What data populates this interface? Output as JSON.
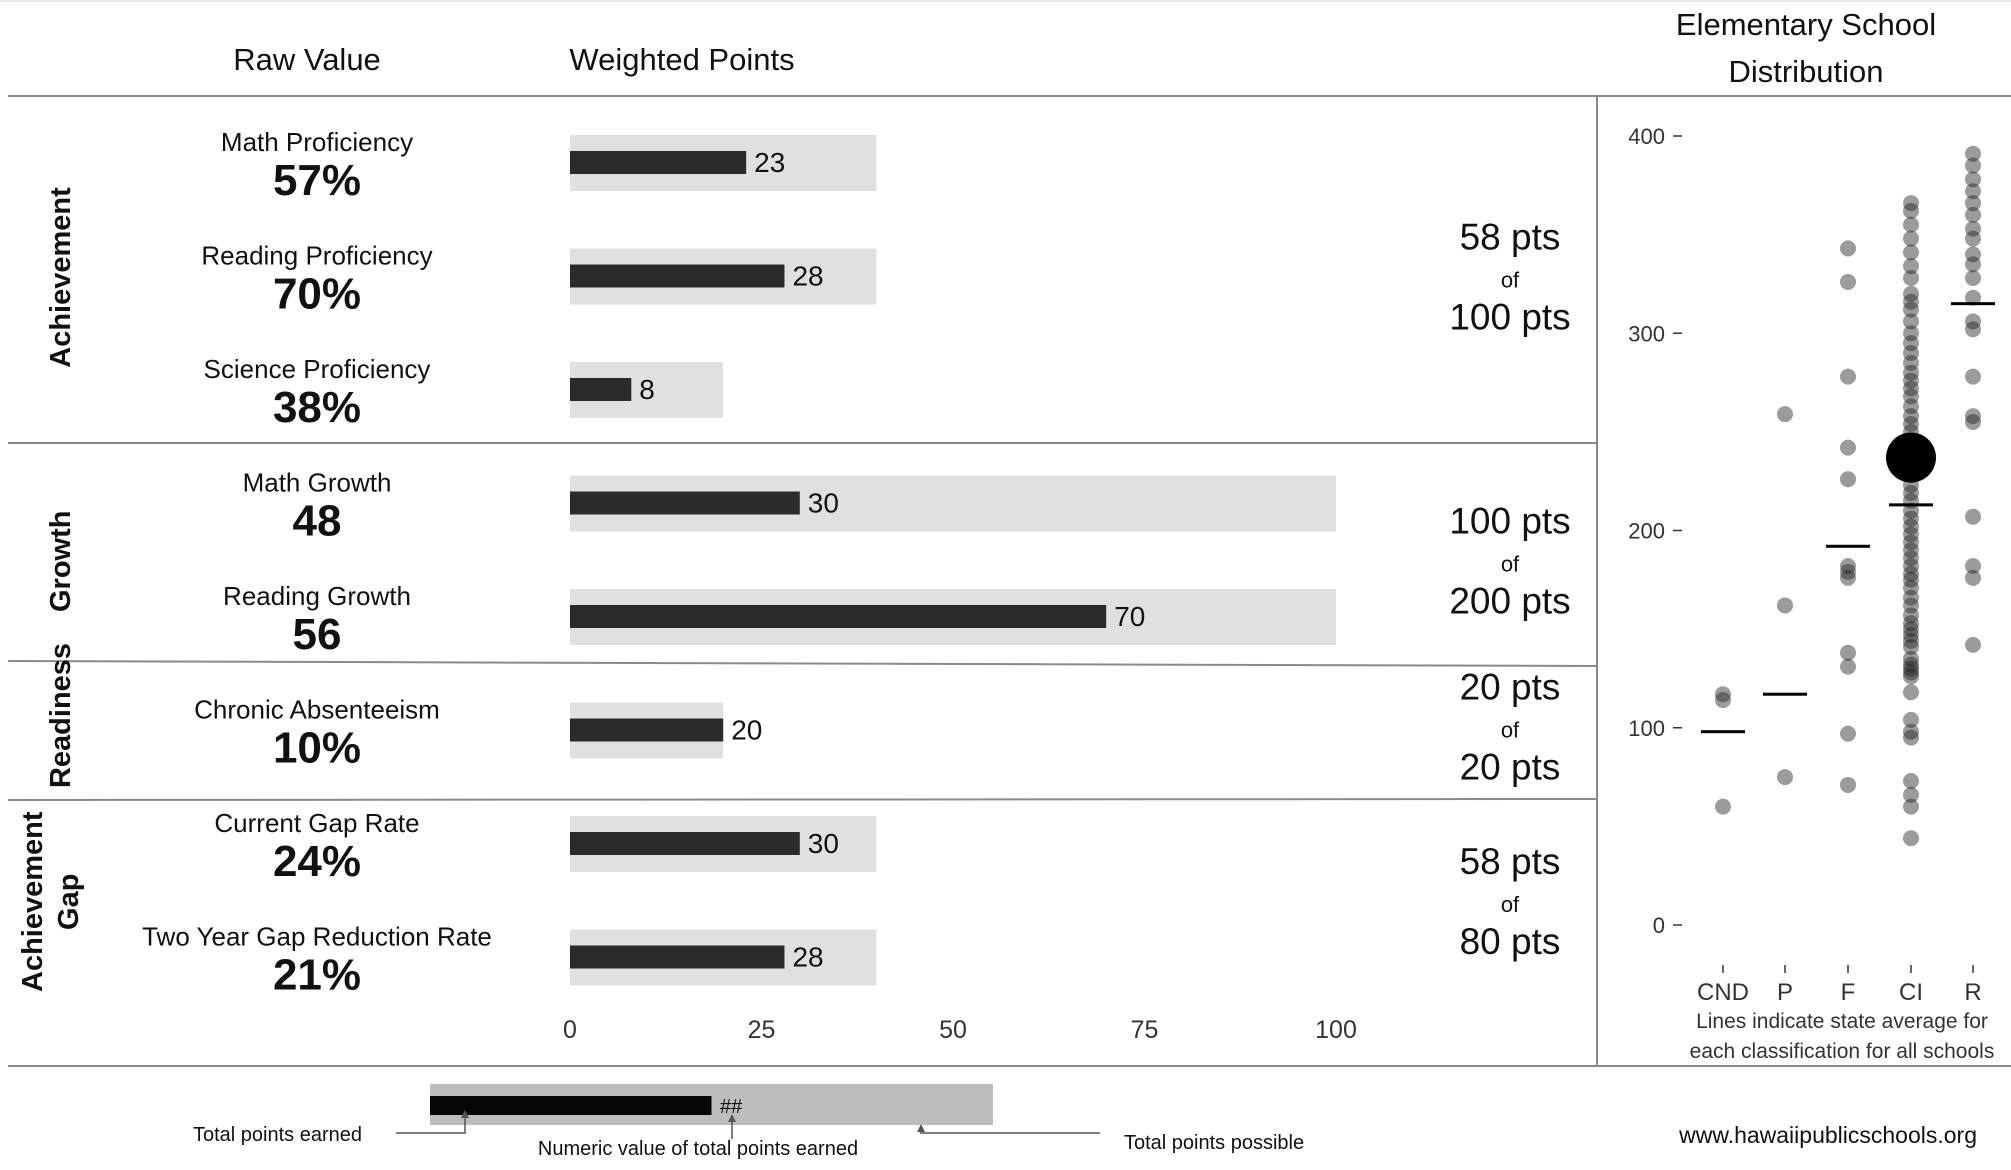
{
  "headers": {
    "raw_value": "Raw Value",
    "weighted_points": "Weighted Points",
    "distribution_line1": "Elementary School",
    "distribution_line2": "Distribution"
  },
  "colors": {
    "bar_earned": "#2b2b2b",
    "bar_possible": "#e0e0e0",
    "divider": "#8a8a8a",
    "point": "#222222",
    "legend_possible": "#bdbdbd",
    "legend_earned": "#050505"
  },
  "chart_data": [
    {
      "type": "bar",
      "orientation": "horizontal",
      "xlim": [
        0,
        100
      ],
      "xticks": [
        "0",
        "25",
        "50",
        "75",
        "100"
      ],
      "sections": [
        {
          "label_lines": [
            "Achievement"
          ],
          "summary": {
            "earned": "58 pts",
            "of": "of",
            "possible": "100 pts"
          },
          "metrics": [
            {
              "label": "Math Proficiency",
              "raw": "57%",
              "earned": 23,
              "possible": 40,
              "earned_label": "23"
            },
            {
              "label": "Reading Proficiency",
              "raw": "70%",
              "earned": 28,
              "possible": 40,
              "earned_label": "28"
            },
            {
              "label": "Science Proficiency",
              "raw": "38%",
              "earned": 8,
              "possible": 20,
              "earned_label": "8"
            }
          ]
        },
        {
          "label_lines": [
            "Growth"
          ],
          "summary": {
            "earned": "100 pts",
            "of": "of",
            "possible": "200 pts"
          },
          "metrics": [
            {
              "label": "Math Growth",
              "raw": "48",
              "earned": 30,
              "possible": 100,
              "earned_label": "30"
            },
            {
              "label": "Reading Growth",
              "raw": "56",
              "earned": 70,
              "possible": 100,
              "earned_label": "70"
            }
          ]
        },
        {
          "label_lines": [
            "Readiness"
          ],
          "summary": {
            "earned": "20 pts",
            "of": "of",
            "possible": "20 pts"
          },
          "metrics": [
            {
              "label": "Chronic Absenteeism",
              "raw": "10%",
              "earned": 20,
              "possible": 20,
              "earned_label": "20"
            }
          ]
        },
        {
          "label_lines": [
            "Achievement",
            "Gap"
          ],
          "summary": {
            "earned": "58 pts",
            "of": "of",
            "possible": "80 pts"
          },
          "metrics": [
            {
              "label": "Current Gap Rate",
              "raw": "24%",
              "earned": 30,
              "possible": 40,
              "earned_label": "30"
            },
            {
              "label": "Two Year Gap Reduction Rate",
              "raw": "21%",
              "earned": 28,
              "possible": 40,
              "earned_label": "28"
            }
          ]
        }
      ]
    },
    {
      "type": "scatter",
      "title": "Elementary School Distribution",
      "categories": [
        "CND",
        "P",
        "F",
        "CI",
        "R"
      ],
      "ylim": [
        0,
        400
      ],
      "yticks": [
        0,
        100,
        200,
        300,
        400
      ],
      "note_lines": [
        "Lines indicate state average for",
        "each classification for all schools"
      ],
      "averages": [
        98,
        117,
        192,
        213,
        315
      ],
      "highlight": {
        "category": "CI",
        "y": 237
      },
      "points": {
        "CND": [
          60,
          114,
          117
        ],
        "P": [
          75,
          162,
          259
        ],
        "F": [
          71,
          97,
          131,
          138,
          176,
          179,
          182,
          226,
          242,
          278,
          326,
          343
        ],
        "CI": [
          44,
          60,
          66,
          73,
          95,
          98,
          104,
          118,
          126,
          128,
          130,
          132,
          135,
          141,
          144,
          147,
          150,
          153,
          157,
          162,
          166,
          171,
          175,
          178,
          182,
          186,
          190,
          194,
          198,
          202,
          206,
          210,
          215,
          219,
          223,
          228,
          232,
          236,
          240,
          245,
          250,
          254,
          258,
          263,
          268,
          272,
          276,
          280,
          285,
          290,
          295,
          300,
          306,
          312,
          316,
          320,
          328,
          334,
          341,
          348,
          355,
          362,
          366
        ],
        "R": [
          142,
          176,
          182,
          207,
          255,
          258,
          278,
          302,
          306,
          318,
          328,
          335,
          340,
          348,
          353,
          360,
          366,
          372,
          378,
          385,
          391
        ]
      }
    }
  ],
  "legend": {
    "bar_value_label": "##",
    "total_earned": "Total points earned",
    "numeric_value": "Numeric value of total points earned",
    "total_possible": "Total points possible",
    "legend_earned_frac": 0.5
  },
  "footer": {
    "url": "www.hawaiipublicschools.org"
  }
}
